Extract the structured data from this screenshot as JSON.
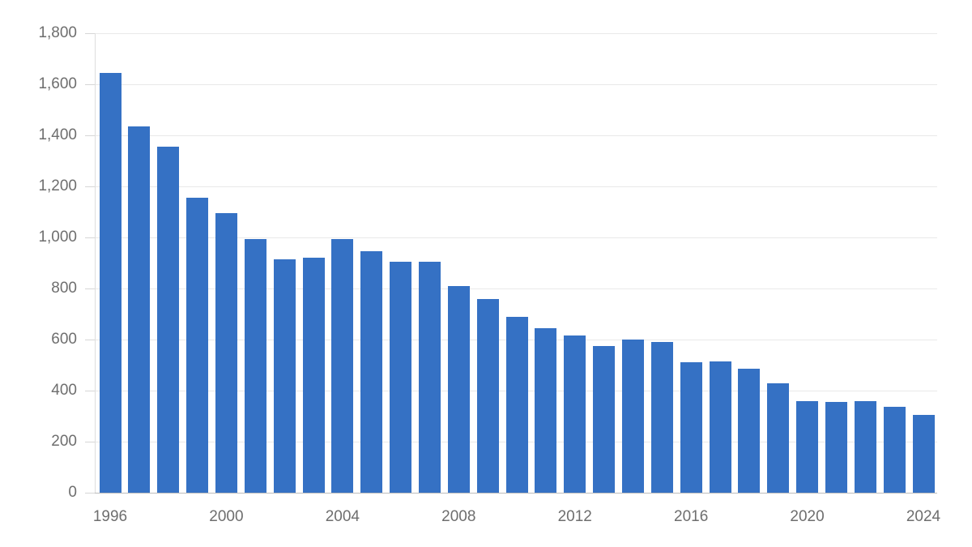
{
  "chart_data": {
    "type": "bar",
    "title": "",
    "xlabel": "",
    "ylabel": "",
    "categories": [
      1996,
      1997,
      1998,
      1999,
      2000,
      2001,
      2002,
      2003,
      2004,
      2005,
      2006,
      2007,
      2008,
      2009,
      2010,
      2011,
      2012,
      2013,
      2014,
      2015,
      2016,
      2017,
      2018,
      2019,
      2020,
      2021,
      2022,
      2023,
      2024
    ],
    "values": [
      1645,
      1435,
      1355,
      1155,
      1095,
      995,
      915,
      920,
      995,
      945,
      905,
      905,
      810,
      760,
      690,
      645,
      615,
      575,
      600,
      590,
      510,
      515,
      485,
      430,
      360,
      357,
      360,
      335,
      305
    ],
    "ylim": [
      0,
      1800
    ],
    "ytick_step": 200,
    "grid": true,
    "legend_position": "none",
    "bar_color": "#3571c4",
    "gridline_color": "#e9e9e9",
    "baseline_color": "#bdbdbd",
    "label_color": "#6e6e6e",
    "y_tick_labels": [
      "0",
      "200",
      "400",
      "600",
      "800",
      "1,000",
      "1,200",
      "1,400",
      "1,600",
      "1,800"
    ],
    "x_tick_labels": [
      "1996",
      "2000",
      "2004",
      "2008",
      "2012",
      "2016",
      "2020",
      "2024"
    ],
    "x_label_every_n_bars": 4
  }
}
